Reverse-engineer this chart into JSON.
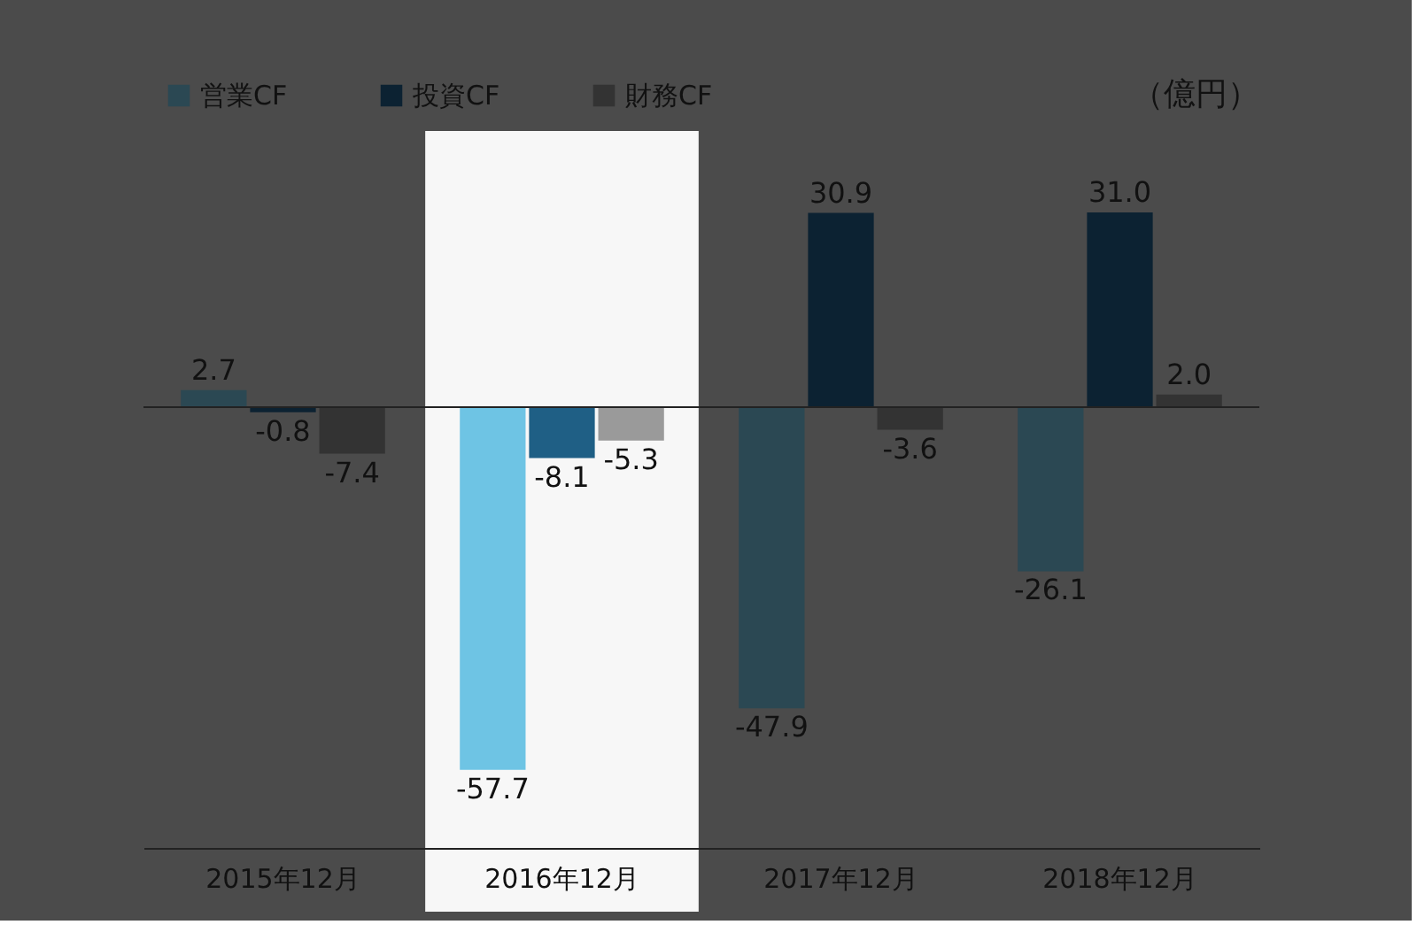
{
  "chart_data": {
    "type": "bar",
    "ylabel": "（億円）",
    "categories": [
      "2015年12月",
      "2016年12月",
      "2017年12月",
      "2018年12月"
    ],
    "series": [
      {
        "name": "営業CF",
        "color": "#2b4853",
        "colors": [
          "#2b4853",
          "#6ec4e4",
          "#2b4853",
          "#2b4853"
        ],
        "values": [
          2.7,
          -57.7,
          -47.9,
          -26.1
        ],
        "value_labels": [
          "2.7",
          "-57.7",
          "-47.9",
          "-26.1"
        ]
      },
      {
        "name": "投資CF",
        "color": "#0c2232",
        "colors": [
          "#0c2232",
          "#1f5f85",
          "#0c2232",
          "#0c2232"
        ],
        "values": [
          -0.8,
          -8.1,
          30.9,
          31.0
        ],
        "value_labels": [
          "-0.8",
          "-8.1",
          "30.9",
          "31.0"
        ]
      },
      {
        "name": "財務CF",
        "color": "#333333",
        "colors": [
          "#333333",
          "#9a9a9a",
          "#333333",
          "#333333"
        ],
        "values": [
          -7.4,
          -5.3,
          -3.6,
          2.0
        ],
        "value_labels": [
          "-7.4",
          "-5.3",
          "-3.6",
          "2.0"
        ]
      }
    ],
    "bands": [
      {
        "axis": "x",
        "from": "2016年12月",
        "to": "2016年12月",
        "color": "#f7f7f7"
      }
    ],
    "legend": "top left",
    "grid": false
  }
}
